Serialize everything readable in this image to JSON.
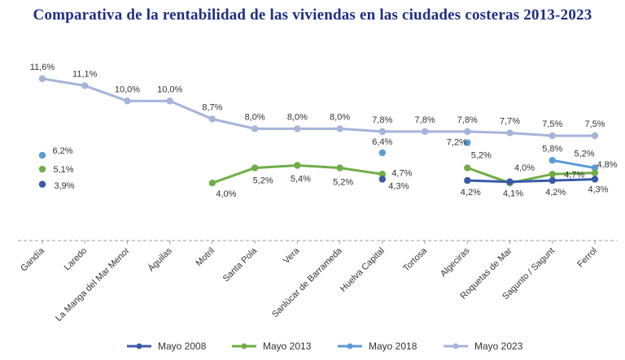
{
  "chart_data": {
    "type": "line",
    "title": "Comparativa  de la rentabilidad  de las viviendas  en las ciudades costeras 2013-2023",
    "xlabel": "",
    "ylabel": "",
    "ylim": [
      0,
      13
    ],
    "grid": false,
    "legend_position": "bottom",
    "categories": [
      "Gandía",
      "Laredo",
      "La Manga del Mar Menor",
      "Águilas",
      "Motril",
      "Santa Pola",
      "Vera",
      "Sanlúcar de Barrameda",
      "Huelva Capital",
      "Tortosa",
      "Algeciras",
      "Roquetas de Mar",
      "Sagunto / Sagunt",
      "Ferrol"
    ],
    "series": [
      {
        "name": "Mayo 2008",
        "color": "#3a5aa8",
        "values": [
          3.9,
          null,
          null,
          null,
          null,
          null,
          null,
          null,
          4.3,
          null,
          4.2,
          4.1,
          4.2,
          4.3
        ],
        "labels": [
          "3,9%",
          null,
          null,
          null,
          null,
          null,
          null,
          null,
          "4,3%",
          null,
          "4,2%",
          "4,1%",
          "4,2%",
          "4,3%"
        ]
      },
      {
        "name": "Mayo 2013",
        "color": "#70ad47",
        "values": [
          5.1,
          null,
          null,
          null,
          4.0,
          5.2,
          5.4,
          5.2,
          4.7,
          null,
          5.2,
          4.0,
          4.7,
          4.8
        ],
        "labels": [
          "5,1%",
          null,
          null,
          null,
          "4,0%",
          "5,2%",
          "5,4%",
          "5,2%",
          "4,7%",
          null,
          "5,2%",
          "4,0%",
          "4,7%",
          "4,8%"
        ]
      },
      {
        "name": "Mayo 2018",
        "color": "#5b9bd5",
        "values": [
          6.2,
          null,
          null,
          null,
          null,
          null,
          null,
          null,
          6.4,
          null,
          7.2,
          null,
          5.8,
          5.2
        ],
        "labels": [
          "6,2%",
          null,
          null,
          null,
          null,
          null,
          null,
          null,
          "6,4%",
          null,
          "7,2%",
          null,
          "5,8%",
          "5,2%"
        ]
      },
      {
        "name": "Mayo 2023",
        "color": "#a5b4da",
        "values": [
          11.6,
          11.1,
          10.0,
          10.0,
          8.7,
          8.0,
          8.0,
          8.0,
          7.8,
          7.8,
          7.8,
          7.7,
          7.5,
          7.5
        ],
        "labels": [
          "11,6%",
          "11,1%",
          "10,0%",
          "10,0%",
          "8,7%",
          "8,0%",
          "8,0%",
          "8,0%",
          "7,8%",
          "7,8%",
          "7,8%",
          "7,7%",
          "7,5%",
          "7,5%"
        ]
      }
    ]
  }
}
